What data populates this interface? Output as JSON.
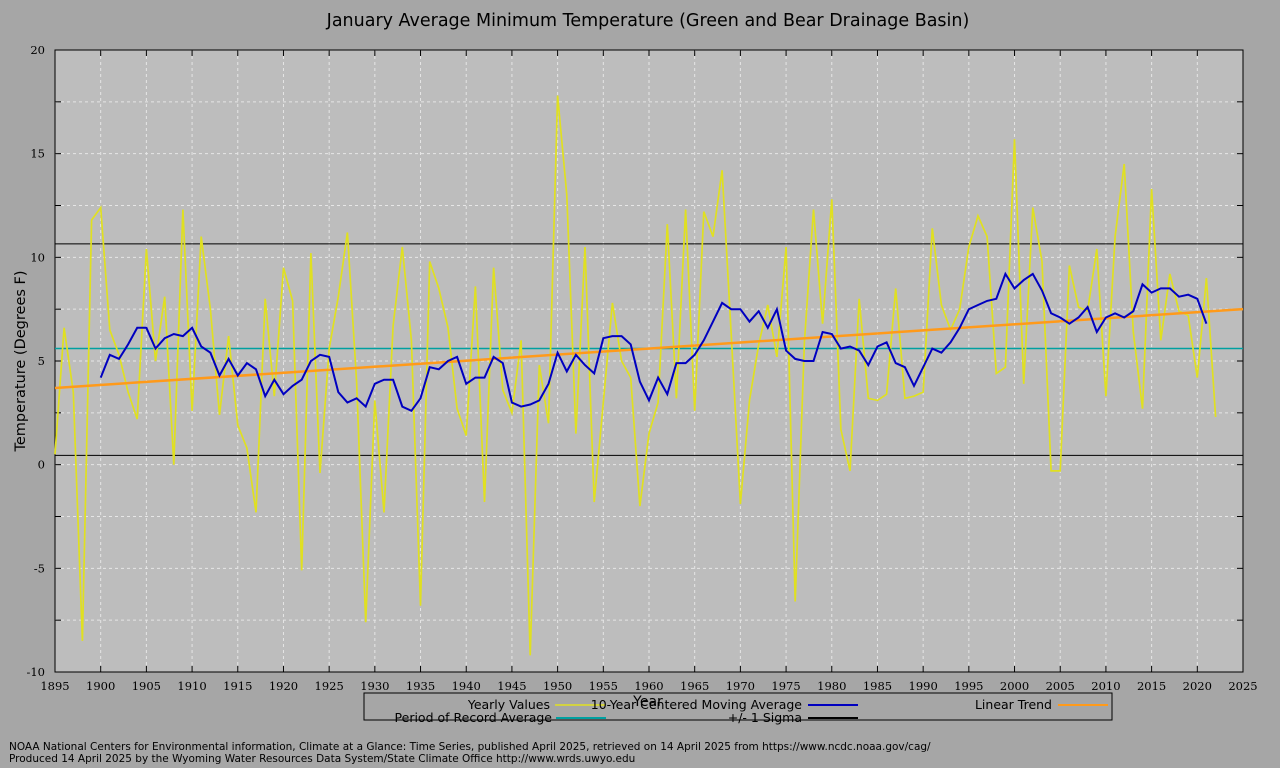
{
  "chart_data": {
    "type": "line",
    "title": "January Average Minimum Temperature (Green and Bear Drainage Basin)",
    "xlabel": "Year",
    "ylabel": "Temperature (Degrees F)",
    "xlim": [
      1895,
      2025
    ],
    "ylim": [
      -10,
      20
    ],
    "x_ticks": [
      1895,
      1900,
      1905,
      1910,
      1915,
      1920,
      1925,
      1930,
      1935,
      1940,
      1945,
      1950,
      1955,
      1960,
      1965,
      1970,
      1975,
      1980,
      1985,
      1990,
      1995,
      2000,
      2005,
      2010,
      2015,
      2020,
      2025
    ],
    "y_ticks": [
      -10,
      -5,
      0,
      5,
      10,
      15,
      20
    ],
    "grid": true,
    "legend_position": "bottom",
    "period_of_record_average": 5.6,
    "sigma_upper": 10.65,
    "sigma_lower": 0.45,
    "trend_start": [
      1895,
      3.7
    ],
    "trend_end": [
      2025,
      7.5
    ],
    "yearly_start": 1895,
    "yearly": [
      0.5,
      6.6,
      3.5,
      -8.5,
      11.8,
      12.4,
      6.5,
      5.3,
      3.5,
      2.2,
      10.4,
      5.0,
      8.1,
      0.0,
      12.3,
      2.6,
      11.0,
      7.5,
      2.4,
      6.2,
      1.9,
      0.8,
      -2.3,
      8.0,
      3.3,
      9.5,
      7.9,
      -5.1,
      10.2,
      -0.4,
      5.6,
      8.1,
      11.2,
      4.0,
      -7.6,
      3.1,
      -2.3,
      6.7,
      10.5,
      6.0,
      -6.8,
      9.8,
      8.5,
      6.6,
      2.7,
      1.4,
      8.6,
      -1.8,
      9.5,
      3.6,
      2.5,
      6.0,
      -9.2,
      4.8,
      2.0,
      17.8,
      13.0,
      1.5,
      10.5,
      -1.8,
      3.0,
      7.8,
      5.0,
      4.2,
      -2.0,
      1.5,
      3.0,
      11.6,
      3.2,
      12.3,
      2.6,
      12.2,
      11.0,
      14.2,
      6.3,
      -1.9,
      3.1,
      5.8,
      7.7,
      5.2,
      10.5,
      -6.6,
      5.9,
      12.3,
      6.8,
      12.8,
      1.7,
      -0.3,
      8.0,
      3.2,
      3.1,
      3.4,
      8.5,
      3.2,
      3.3,
      3.5,
      11.4,
      7.7,
      6.5,
      7.5,
      10.5,
      12.0,
      11.0,
      4.4,
      4.7,
      15.7,
      3.9,
      12.4,
      9.8,
      -0.3,
      -0.3,
      9.6,
      7.6,
      7.4,
      10.4,
      3.3,
      11.0,
      14.5,
      6.4,
      2.7,
      13.3,
      6.0,
      9.2,
      7.4,
      7.2,
      4.2,
      9.0,
      2.3
    ],
    "moving_avg_start": 1900,
    "moving_avg": [
      4.2,
      5.3,
      5.1,
      5.8,
      6.6,
      6.6,
      5.6,
      6.1,
      6.3,
      6.2,
      6.6,
      5.7,
      5.4,
      4.3,
      5.1,
      4.3,
      4.9,
      4.6,
      3.3,
      4.1,
      3.4,
      3.8,
      4.1,
      5.0,
      5.3,
      5.2,
      3.5,
      3.0,
      3.2,
      2.8,
      3.9,
      4.1,
      4.1,
      2.8,
      2.6,
      3.2,
      4.7,
      4.6,
      5.0,
      5.2,
      3.9,
      4.2,
      4.2,
      5.2,
      4.9,
      3.0,
      2.8,
      2.9,
      3.1,
      3.9,
      5.4,
      4.5,
      5.3,
      4.8,
      4.4,
      6.1,
      6.2,
      6.2,
      5.8,
      4.0,
      3.1,
      4.2,
      3.4,
      4.9,
      4.9,
      5.3,
      6.0,
      6.9,
      7.8,
      7.5,
      7.5,
      6.9,
      7.4,
      6.6,
      7.5,
      5.5,
      5.1,
      5.0,
      5.0,
      6.4,
      6.3,
      5.6,
      5.7,
      5.5,
      4.8,
      5.7,
      5.9,
      4.9,
      4.7,
      3.8,
      4.7,
      5.6,
      5.4,
      5.9,
      6.6,
      7.5,
      7.7,
      7.9,
      8.0,
      9.2,
      8.5,
      8.9,
      9.2,
      8.4,
      7.3,
      7.1,
      6.8,
      7.1,
      7.6,
      6.4,
      7.1,
      7.3,
      7.1,
      7.4,
      8.7,
      8.3,
      8.5,
      8.5,
      8.1,
      8.2,
      8.0,
      6.8
    ],
    "legend": [
      {
        "label": "Yearly Values",
        "color": "#e0e020"
      },
      {
        "label": "10-Year Centered Moving Average",
        "color": "#0000c0"
      },
      {
        "label": "Linear Trend",
        "color": "#ff9a1a"
      },
      {
        "label": "Period of Record Average",
        "color": "#00a0a0"
      },
      {
        "label": "+/- 1 Sigma",
        "color": "#000000"
      }
    ]
  },
  "colors": {
    "background": "#a6a6a6",
    "plot_area": "#bdbdbd",
    "yearly": "#e0e020",
    "moving_avg": "#0000c0",
    "trend": "#ff9a1a",
    "average": "#00a0a0",
    "sigma": "#000000"
  },
  "footer": {
    "line1": "NOAA National Centers for Environmental information, Climate at a Glance: Time Series, published April 2025, retrieved on 14 April 2025 from https://www.ncdc.noaa.gov/cag/",
    "line2": "Produced 14 April 2025 by the Wyoming Water Resources Data System/State Climate Office http://www.wrds.uwyo.edu"
  }
}
